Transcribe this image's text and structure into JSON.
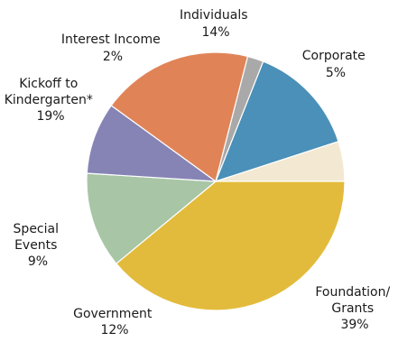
{
  "chart_data": {
    "type": "pie",
    "title": "",
    "slices": [
      {
        "label_lines": [
          "Individuals"
        ],
        "label": "Individuals",
        "value": 14,
        "pct_label": "14%",
        "color": "#4a90b8"
      },
      {
        "label_lines": [
          "Corporate"
        ],
        "label": "Corporate",
        "value": 5,
        "pct_label": "5%",
        "color": "#f3e8d1"
      },
      {
        "label_lines": [
          "Foundation/",
          "Grants"
        ],
        "label": "Foundation/Grants",
        "value": 39,
        "pct_label": "39%",
        "color": "#e3bb3c"
      },
      {
        "label_lines": [
          "Government"
        ],
        "label": "Government",
        "value": 12,
        "pct_label": "12%",
        "color": "#a8c6a6"
      },
      {
        "label_lines": [
          "Special",
          "Events"
        ],
        "label": "Special Events",
        "value": 9,
        "pct_label": "9%",
        "color": "#8684b5"
      },
      {
        "label_lines": [
          "Kickoff to",
          "Kindergarten*"
        ],
        "label": "Kickoff to Kindergarten*",
        "value": 19,
        "pct_label": "19%",
        "color": "#e08458"
      },
      {
        "label_lines": [
          "Interest Income"
        ],
        "label": "Interest Income",
        "value": 2,
        "pct_label": "2%",
        "color": "#a9a9a9"
      }
    ]
  }
}
